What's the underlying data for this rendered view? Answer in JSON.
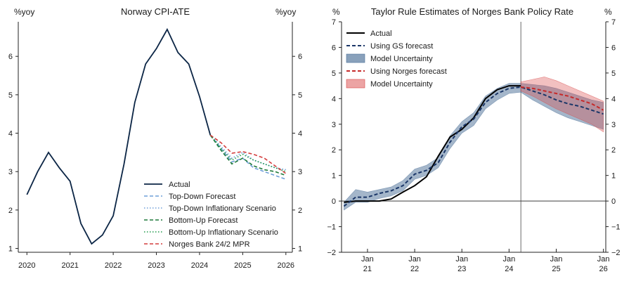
{
  "chart_data": [
    {
      "type": "line",
      "title": "Norway CPI-ATE",
      "ylabel_left": "%yoy",
      "ylabel_right": "%yoy",
      "ylim": [
        0.9,
        6.9
      ],
      "yticks": [
        1,
        2,
        3,
        4,
        5,
        6
      ],
      "xlim": [
        2019.8,
        2026.15
      ],
      "xticks": [
        "2020",
        "2021",
        "2022",
        "2023",
        "2024",
        "2025",
        "2026"
      ],
      "series": [
        {
          "name": "Actual",
          "color": "#0b2545",
          "style": "solid",
          "x": [
            2020.0,
            2020.25,
            2020.5,
            2020.75,
            2021.0,
            2021.25,
            2021.5,
            2021.75,
            2022.0,
            2022.25,
            2022.5,
            2022.75,
            2023.0,
            2023.25,
            2023.5,
            2023.75,
            2024.0,
            2024.25
          ],
          "y": [
            2.4,
            3.0,
            3.5,
            3.1,
            2.75,
            1.65,
            1.12,
            1.35,
            1.85,
            3.2,
            4.8,
            5.8,
            6.2,
            6.7,
            6.1,
            5.8,
            4.95,
            3.95
          ]
        },
        {
          "name": "Top-Down Forecast",
          "color": "#6f9fd8",
          "style": "dashed",
          "x": [
            2024.25,
            2024.5,
            2024.75,
            2025.0,
            2025.25,
            2025.5,
            2025.75,
            2026.0
          ],
          "y": [
            3.95,
            3.6,
            3.25,
            3.35,
            3.1,
            3.0,
            2.9,
            2.8
          ]
        },
        {
          "name": "Top-Down Inflationary Scenario",
          "color": "#6f9fd8",
          "style": "dotted",
          "x": [
            2024.25,
            2024.5,
            2024.75,
            2025.0,
            2025.25,
            2025.5,
            2025.75,
            2026.0
          ],
          "y": [
            3.95,
            3.65,
            3.35,
            3.5,
            3.3,
            3.2,
            3.1,
            3.05
          ]
        },
        {
          "name": "Bottom-Up Forecast",
          "color": "#1f7a3a",
          "style": "dashed",
          "x": [
            2024.25,
            2024.5,
            2024.75,
            2025.0,
            2025.25,
            2025.5,
            2025.75,
            2026.0
          ],
          "y": [
            3.95,
            3.55,
            3.2,
            3.35,
            3.15,
            3.05,
            3.0,
            2.9
          ]
        },
        {
          "name": "Bottom-Up Inflationary Scenario",
          "color": "#1f9a4a",
          "style": "dotted",
          "x": [
            2024.25,
            2024.5,
            2024.75,
            2025.0,
            2025.25,
            2025.5,
            2025.75,
            2026.0
          ],
          "y": [
            3.95,
            3.6,
            3.3,
            3.45,
            3.3,
            3.2,
            3.1,
            3.0
          ]
        },
        {
          "name": "Norges Bank 24/2 MPR",
          "color": "#d43d3d",
          "style": "dashed",
          "x": [
            2024.25,
            2024.5,
            2024.75,
            2025.0,
            2025.25,
            2025.5,
            2025.75,
            2026.0
          ],
          "y": [
            3.95,
            3.75,
            3.48,
            3.52,
            3.45,
            3.35,
            3.15,
            2.95
          ]
        }
      ]
    },
    {
      "type": "line",
      "title": "Taylor Rule Estimates of Norges Bank Policy Rate",
      "ylabel_left": "%",
      "ylabel_right": "%",
      "ylim": [
        -2,
        7
      ],
      "yticks": [
        -2,
        -1,
        0,
        1,
        2,
        3,
        4,
        5,
        6,
        7
      ],
      "xlim": [
        2020.45,
        2026.05
      ],
      "xticks": [
        {
          "x": 2021.0,
          "label": "Jan",
          "sublabel": "21"
        },
        {
          "x": 2022.0,
          "label": "Jan",
          "sublabel": "22"
        },
        {
          "x": 2023.0,
          "label": "Jan",
          "sublabel": "23"
        },
        {
          "x": 2024.0,
          "label": "Jan",
          "sublabel": "24"
        },
        {
          "x": 2025.0,
          "label": "Jan",
          "sublabel": "25"
        },
        {
          "x": 2026.0,
          "label": "Jan",
          "sublabel": "26"
        }
      ],
      "vline_x": 2024.25,
      "series": [
        {
          "name": "Actual",
          "color": "#000000",
          "style": "solid",
          "x": [
            2020.5,
            2020.75,
            2021.0,
            2021.25,
            2021.5,
            2021.75,
            2022.0,
            2022.25,
            2022.5,
            2022.75,
            2023.0,
            2023.25,
            2023.5,
            2023.75,
            2024.0,
            2024.25
          ],
          "y": [
            -0.05,
            0.0,
            0.0,
            0.0,
            0.08,
            0.35,
            0.6,
            0.95,
            1.75,
            2.5,
            2.8,
            3.25,
            4.0,
            4.35,
            4.5,
            4.5
          ]
        },
        {
          "name": "Using GS forecast",
          "color": "#1a3668",
          "style": "dashed",
          "x": [
            2020.5,
            2020.75,
            2021.0,
            2021.25,
            2021.5,
            2021.75,
            2022.0,
            2022.25,
            2022.5,
            2022.75,
            2023.0,
            2023.25,
            2023.5,
            2023.75,
            2024.0,
            2024.25,
            2024.5,
            2024.75,
            2025.0,
            2025.25,
            2025.5,
            2025.75,
            2026.0
          ],
          "y": [
            -0.2,
            0.15,
            0.15,
            0.3,
            0.4,
            0.6,
            1.05,
            1.2,
            1.5,
            2.3,
            2.9,
            3.2,
            3.85,
            4.2,
            4.4,
            4.45,
            4.3,
            4.15,
            3.95,
            3.8,
            3.7,
            3.55,
            3.4
          ]
        },
        {
          "name": "Model Uncertainty",
          "color": "#4a6e96",
          "style": "band",
          "opacity": 0.5,
          "x": [
            2020.5,
            2020.75,
            2021.0,
            2021.25,
            2021.5,
            2021.75,
            2022.0,
            2022.25,
            2022.5,
            2022.75,
            2023.0,
            2023.25,
            2023.5,
            2023.75,
            2024.0,
            2024.25,
            2024.5,
            2024.75,
            2025.0,
            2025.25,
            2025.5,
            2025.75,
            2026.0
          ],
          "lower": [
            -0.35,
            -0.05,
            -0.05,
            0.1,
            0.2,
            0.4,
            0.85,
            1.0,
            1.3,
            2.05,
            2.65,
            2.95,
            3.6,
            3.95,
            4.2,
            4.25,
            3.95,
            3.7,
            3.45,
            3.25,
            3.1,
            2.95,
            2.8
          ],
          "upper": [
            -0.05,
            0.45,
            0.35,
            0.45,
            0.55,
            0.8,
            1.25,
            1.4,
            1.7,
            2.55,
            3.1,
            3.45,
            4.1,
            4.4,
            4.6,
            4.6,
            4.55,
            4.5,
            4.4,
            4.25,
            4.1,
            3.95,
            3.85
          ]
        },
        {
          "name": "Using Norges forecast",
          "color": "#c62a2a",
          "style": "dashed",
          "x": [
            2024.25,
            2024.5,
            2024.75,
            2025.0,
            2025.25,
            2025.5,
            2025.75,
            2026.0
          ],
          "y": [
            4.45,
            4.4,
            4.3,
            4.2,
            4.1,
            3.95,
            3.8,
            3.55
          ]
        },
        {
          "name": "Model Uncertainty",
          "color": "#d94a4a",
          "style": "band",
          "opacity": 0.35,
          "x": [
            2024.25,
            2024.5,
            2024.75,
            2025.0,
            2025.25,
            2025.5,
            2025.75,
            2026.0
          ],
          "lower": [
            4.3,
            4.1,
            3.85,
            3.6,
            3.4,
            3.2,
            3.0,
            2.7
          ],
          "upper": [
            4.65,
            4.75,
            4.85,
            4.7,
            4.5,
            4.3,
            4.1,
            3.9
          ]
        }
      ]
    }
  ]
}
